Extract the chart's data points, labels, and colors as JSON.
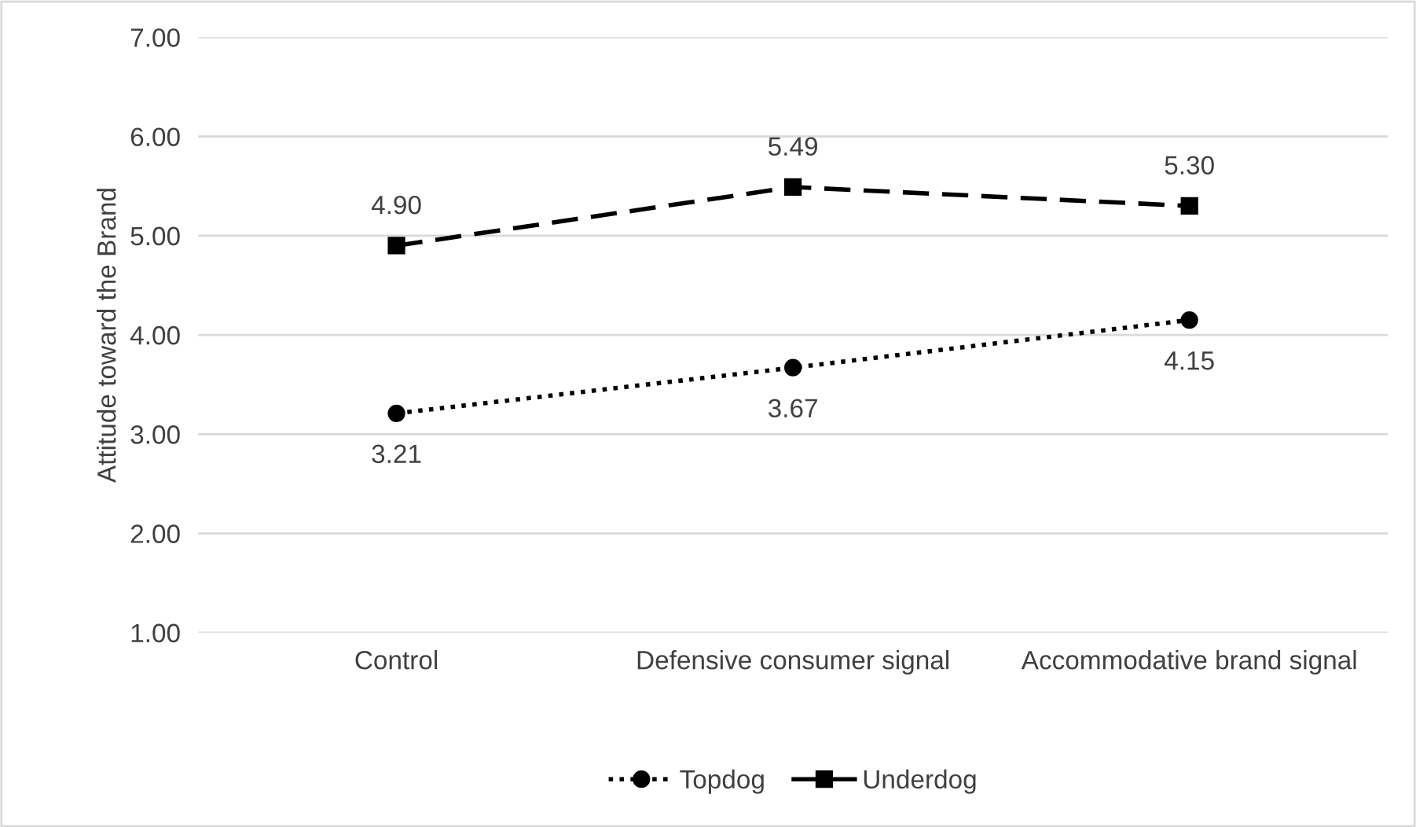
{
  "chart_data": {
    "type": "line",
    "ylabel": "Attitude toward the Brand",
    "categories": [
      "Control",
      "Defensive consumer signal",
      "Accommodative brand signal"
    ],
    "series": [
      {
        "name": "Topdog",
        "color": "#000000",
        "values": [
          3.21,
          3.67,
          4.15
        ],
        "value_labels": [
          "3.21",
          "3.67",
          "4.15"
        ],
        "marker": "circle",
        "line_style": "dotted"
      },
      {
        "name": "Underdog",
        "color": "#000000",
        "values": [
          4.9,
          5.49,
          5.3
        ],
        "value_labels": [
          "4.90",
          "5.49",
          "5.30"
        ],
        "marker": "square",
        "line_style": "dashed"
      }
    ],
    "ylim": [
      1,
      7
    ],
    "yticks": [
      {
        "value": 1,
        "label": "1.00"
      },
      {
        "value": 2,
        "label": "2.00"
      },
      {
        "value": 3,
        "label": "3.00"
      },
      {
        "value": 4,
        "label": "4.00"
      },
      {
        "value": 5,
        "label": "5.00"
      },
      {
        "value": 6,
        "label": "6.00"
      },
      {
        "value": 7,
        "label": "7.00"
      }
    ],
    "grid": "y",
    "legend": "bottom"
  }
}
